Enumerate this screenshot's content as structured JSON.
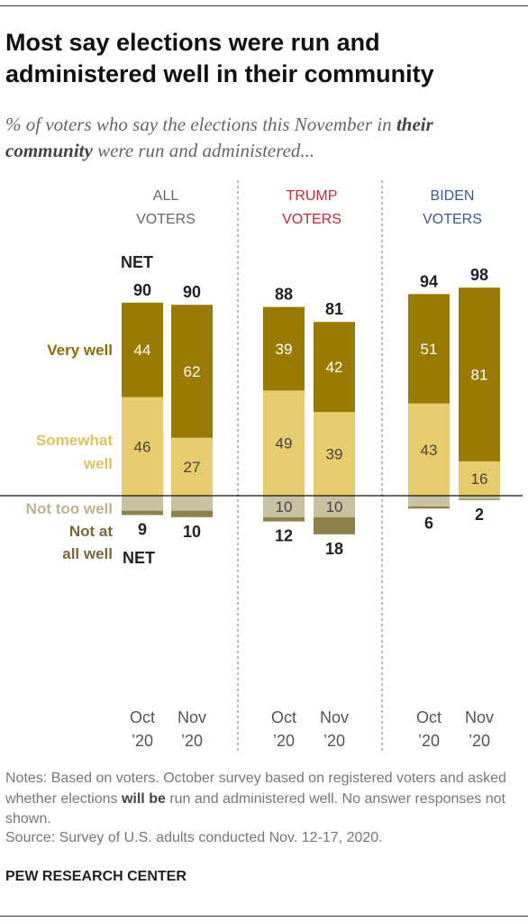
{
  "title": "Most say elections were run and administered well in their community",
  "subtitle": {
    "part1": "% of voters who say the elections this November in",
    "emphasis": "their community",
    "part2": "were run and administered..."
  },
  "chart_data": {
    "type": "bar",
    "stacked": true,
    "categories": [
      "Oct '20",
      "Nov '20"
    ],
    "groups": [
      {
        "label_line1": "ALL",
        "label_line2": "VOTERS",
        "color": "#666666",
        "bars": [
          {
            "very": 44,
            "somewhat": 46,
            "not_too": 7,
            "not_at_all": 2,
            "net_well": "90",
            "net_not_well": "9"
          },
          {
            "very": 62,
            "somewhat": 27,
            "not_too": 7,
            "not_at_all": 3,
            "net_well": "90",
            "net_not_well": "10"
          }
        ]
      },
      {
        "label_line1": "TRUMP",
        "label_line2": "VOTERS",
        "color": "#c0283b",
        "bars": [
          {
            "very": 39,
            "somewhat": 49,
            "not_too": 10,
            "not_at_all": 2,
            "net_well": "88",
            "net_not_well": "12"
          },
          {
            "very": 42,
            "somewhat": 39,
            "not_too": 10,
            "not_at_all": 8,
            "net_well": "81",
            "net_not_well": "18"
          }
        ]
      },
      {
        "label_line1": "BIDEN",
        "label_line2": "VOTERS",
        "color": "#3c5b87",
        "bars": [
          {
            "very": 51,
            "somewhat": 43,
            "not_too": 5,
            "not_at_all": 1,
            "net_well": "94",
            "net_not_well": "6"
          },
          {
            "very": 81,
            "somewhat": 16,
            "not_too": 1.5,
            "not_at_all": 0.5,
            "net_well": "98",
            "net_not_well": "2"
          }
        ]
      }
    ],
    "inside_labels": [
      {
        "very": "44",
        "somewhat": "46",
        "not_too": ""
      },
      {
        "very": "62",
        "somewhat": "27",
        "not_too": ""
      },
      {
        "very": "39",
        "somewhat": "49",
        "not_too": "10"
      },
      {
        "very": "42",
        "somewhat": "39",
        "not_too": "10"
      },
      {
        "very": "51",
        "somewhat": "43",
        "not_too": ""
      },
      {
        "very": "81",
        "somewhat": "16",
        "not_too": ""
      }
    ],
    "x_labels": [
      {
        "line1": "Oct",
        "line2": "’20"
      },
      {
        "line1": "Nov",
        "line2": "’20"
      }
    ],
    "legend": [
      {
        "key": "very",
        "lines": [
          "Very well"
        ],
        "color": "#8c6d05"
      },
      {
        "key": "somewhat",
        "lines": [
          "Somewhat",
          "well"
        ],
        "color": "#dcc35e"
      },
      {
        "key": "not_too",
        "lines": [
          "Not too well"
        ],
        "color": "#bcb28f"
      },
      {
        "key": "not_at_all",
        "lines": [
          "Not at",
          "all well"
        ],
        "color": "#766a38"
      }
    ],
    "net_label": "NET",
    "colors": {
      "very": "#997b03",
      "somewhat": "#e6cc6c",
      "not_too": "#c9c2a2",
      "not_at_all": "#8c8148",
      "inside_text_dark_bg": "#ffffff",
      "inside_text_light_bg": "#444444"
    }
  },
  "notes": {
    "text1": "Notes: Based on voters. October survey based on registered voters and asked whether elections",
    "emphasis": "will be",
    "text2": "run and administered well. No answer responses not shown."
  },
  "source": "Source: Survey of U.S. adults conducted Nov. 12-17, 2020.",
  "org": "PEW RESEARCH CENTER"
}
